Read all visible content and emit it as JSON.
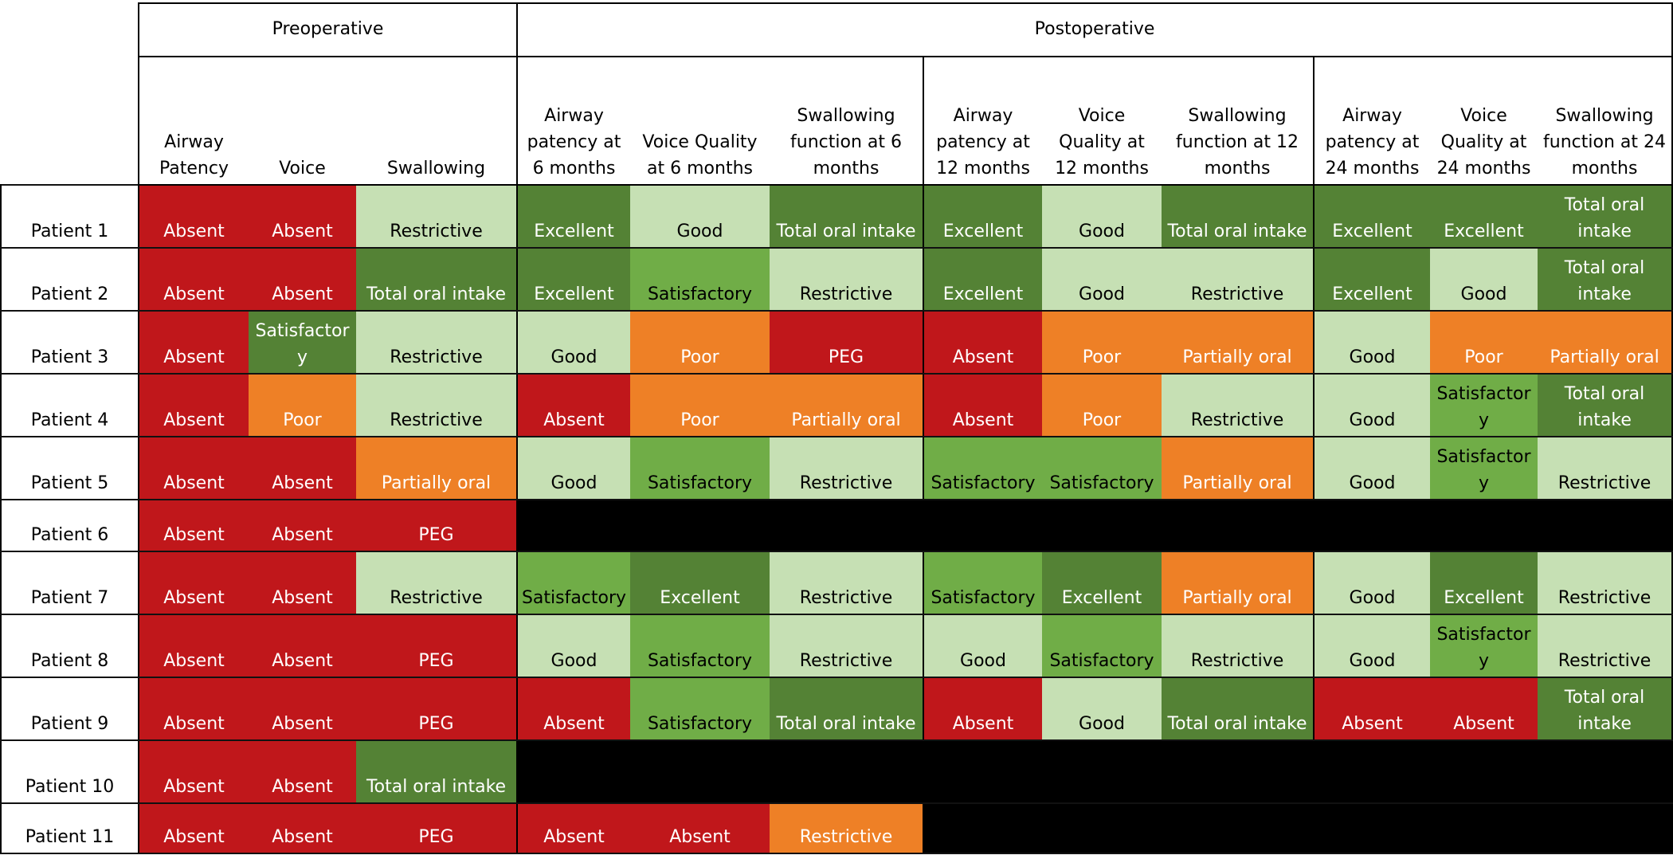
{
  "headers": {
    "groups": [
      "Preoperative",
      "Postoperative"
    ],
    "columns": [
      "Airway Patency",
      "Voice",
      "Swallowing",
      "Airway patency at 6 months",
      "Voice Quality at 6 months",
      "Swallowing function at 6 months",
      "Airway patency at 12 months",
      "Voice Quality at 12 months",
      "Swallowing function at 12 months",
      "Airway patency at 24 months",
      "Voice Quality at 24 months",
      "Swallowing function at 24 months"
    ]
  },
  "colors": {
    "R": "#c0171b",
    "O": "#ee8026",
    "L": "#c6e0b4",
    "M": "#70ad47",
    "D": "#548235",
    "K": "#000000"
  },
  "rows": [
    {
      "label": "Patient 1",
      "cells": [
        [
          "Absent",
          "R"
        ],
        [
          "Absent",
          "R"
        ],
        [
          "Restrictive",
          "L"
        ],
        [
          "Excellent",
          "D"
        ],
        [
          "Good",
          "L"
        ],
        [
          "Total oral intake",
          "D"
        ],
        [
          "Excellent",
          "D"
        ],
        [
          "Good",
          "L"
        ],
        [
          "Total oral intake",
          "D"
        ],
        [
          "Excellent",
          "D"
        ],
        [
          "Excellent",
          "D"
        ],
        [
          "Total oral intake",
          "D"
        ]
      ]
    },
    {
      "label": "Patient 2",
      "cells": [
        [
          "Absent",
          "R"
        ],
        [
          "Absent",
          "R"
        ],
        [
          "Total oral intake",
          "D"
        ],
        [
          "Excellent",
          "D"
        ],
        [
          "Satisfactory",
          "M"
        ],
        [
          "Restrictive",
          "L"
        ],
        [
          "Excellent",
          "D"
        ],
        [
          "Good",
          "L"
        ],
        [
          "Restrictive",
          "L"
        ],
        [
          "Excellent",
          "D"
        ],
        [
          "Good",
          "L"
        ],
        [
          "Total oral intake",
          "D"
        ]
      ]
    },
    {
      "label": "Patient 3",
      "cells": [
        [
          "Absent",
          "R"
        ],
        [
          "Satisfactory",
          "D"
        ],
        [
          "Restrictive",
          "L"
        ],
        [
          "Good",
          "L"
        ],
        [
          "Poor",
          "O"
        ],
        [
          "PEG",
          "R"
        ],
        [
          "Absent",
          "R"
        ],
        [
          "Poor",
          "O"
        ],
        [
          "Partially oral",
          "O"
        ],
        [
          "Good",
          "L"
        ],
        [
          "Poor",
          "O"
        ],
        [
          "Partially oral",
          "O"
        ]
      ]
    },
    {
      "label": "Patient 4",
      "cells": [
        [
          "Absent",
          "R"
        ],
        [
          "Poor",
          "O"
        ],
        [
          "Restrictive",
          "L"
        ],
        [
          "Absent",
          "R"
        ],
        [
          "Poor",
          "O"
        ],
        [
          "Partially oral",
          "O"
        ],
        [
          "Absent",
          "R"
        ],
        [
          "Poor",
          "O"
        ],
        [
          "Restrictive",
          "L"
        ],
        [
          "Good",
          "L"
        ],
        [
          "Satisfactory",
          "M"
        ],
        [
          "Total oral intake",
          "D"
        ]
      ]
    },
    {
      "label": "Patient 5",
      "cells": [
        [
          "Absent",
          "R"
        ],
        [
          "Absent",
          "R"
        ],
        [
          "Partially oral",
          "O"
        ],
        [
          "Good",
          "L"
        ],
        [
          "Satisfactory",
          "M"
        ],
        [
          "Restrictive",
          "L"
        ],
        [
          "Satisfactory",
          "M"
        ],
        [
          "Satisfactory",
          "M"
        ],
        [
          "Partially oral",
          "O"
        ],
        [
          "Good",
          "L"
        ],
        [
          "Satisfactory",
          "M"
        ],
        [
          "Restrictive",
          "L"
        ]
      ]
    },
    {
      "label": "Patient 6",
      "cells": [
        [
          "Absent",
          "R"
        ],
        [
          "Absent",
          "R"
        ],
        [
          "PEG",
          "R"
        ],
        [
          "",
          "K"
        ],
        [
          "",
          "K"
        ],
        [
          "",
          "K"
        ],
        [
          "",
          "K"
        ],
        [
          "",
          "K"
        ],
        [
          "",
          "K"
        ],
        [
          "",
          "K"
        ],
        [
          "",
          "K"
        ],
        [
          "",
          "K"
        ]
      ]
    },
    {
      "label": "Patient 7",
      "cells": [
        [
          "Absent",
          "R"
        ],
        [
          "Absent",
          "R"
        ],
        [
          "Restrictive",
          "L"
        ],
        [
          "Satisfactory",
          "M"
        ],
        [
          "Excellent",
          "D"
        ],
        [
          "Restrictive",
          "L"
        ],
        [
          "Satisfactory",
          "M"
        ],
        [
          "Excellent",
          "D"
        ],
        [
          "Partially oral",
          "O"
        ],
        [
          "Good",
          "L"
        ],
        [
          "Excellent",
          "D"
        ],
        [
          "Restrictive",
          "L"
        ]
      ]
    },
    {
      "label": "Patient 8",
      "cells": [
        [
          "Absent",
          "R"
        ],
        [
          "Absent",
          "R"
        ],
        [
          "PEG",
          "R"
        ],
        [
          "Good",
          "L"
        ],
        [
          "Satisfactory",
          "M"
        ],
        [
          "Restrictive",
          "L"
        ],
        [
          "Good",
          "L"
        ],
        [
          "Satisfactory",
          "M"
        ],
        [
          "Restrictive",
          "L"
        ],
        [
          "Good",
          "L"
        ],
        [
          "Satisfactory",
          "M"
        ],
        [
          "Restrictive",
          "L"
        ]
      ]
    },
    {
      "label": "Patient 9",
      "cells": [
        [
          "Absent",
          "R"
        ],
        [
          "Absent",
          "R"
        ],
        [
          "PEG",
          "R"
        ],
        [
          "Absent",
          "R"
        ],
        [
          "Satisfactory",
          "M"
        ],
        [
          "Total oral intake",
          "D"
        ],
        [
          "Absent",
          "R"
        ],
        [
          "Good",
          "L"
        ],
        [
          "Total oral intake",
          "D"
        ],
        [
          "Absent",
          "R"
        ],
        [
          "Absent",
          "R"
        ],
        [
          "Total oral intake",
          "D"
        ]
      ]
    },
    {
      "label": "Patient 10",
      "cells": [
        [
          "Absent",
          "R"
        ],
        [
          "Absent",
          "R"
        ],
        [
          "Total oral intake",
          "D"
        ],
        [
          "",
          "K"
        ],
        [
          "",
          "K"
        ],
        [
          "",
          "K"
        ],
        [
          "",
          "K"
        ],
        [
          "",
          "K"
        ],
        [
          "",
          "K"
        ],
        [
          "",
          "K"
        ],
        [
          "",
          "K"
        ],
        [
          "",
          "K"
        ]
      ]
    },
    {
      "label": "Patient 11",
      "cells": [
        [
          "Absent",
          "R"
        ],
        [
          "Absent",
          "R"
        ],
        [
          "PEG",
          "R"
        ],
        [
          "Absent",
          "R"
        ],
        [
          "Absent",
          "R"
        ],
        [
          "Restrictive",
          "O"
        ],
        [
          "",
          "K"
        ],
        [
          "",
          "K"
        ],
        [
          "",
          "K"
        ],
        [
          "",
          "K"
        ],
        [
          "",
          "K"
        ],
        [
          "",
          "K"
        ]
      ]
    }
  ]
}
